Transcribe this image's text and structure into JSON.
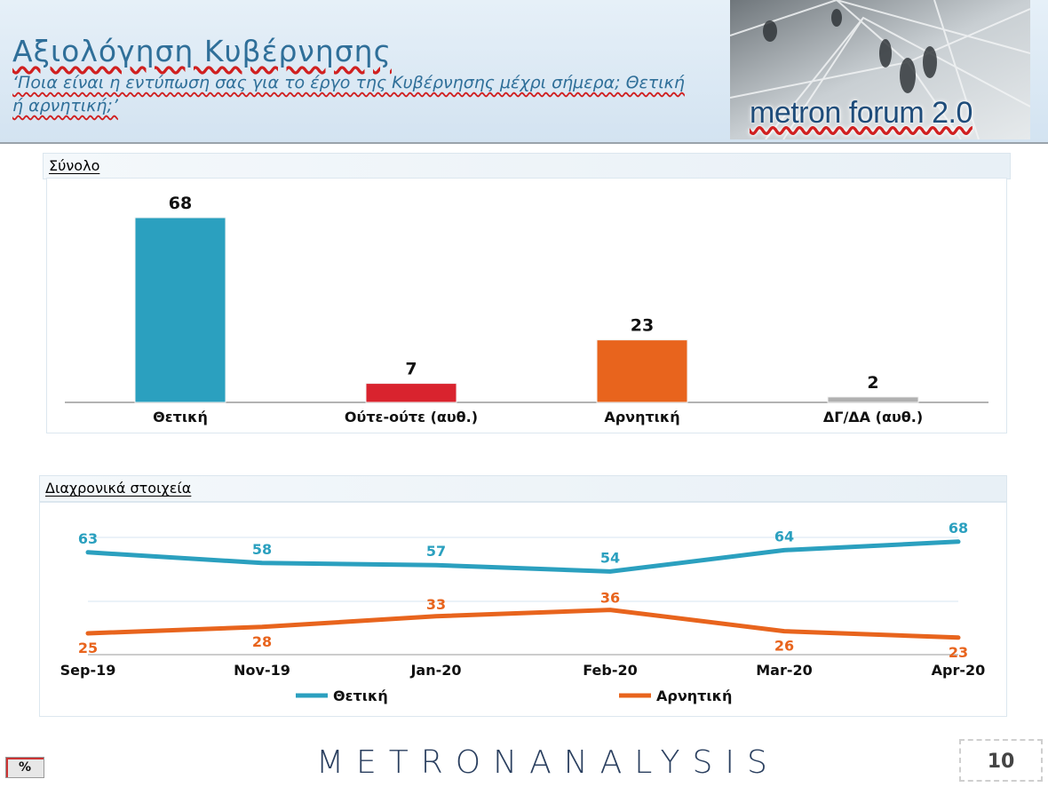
{
  "header": {
    "title": "Αξιολόγηση Κυβέρνησης",
    "subtitle": "‘Ποια είναι η εντύπωση σας για το έργο της Κυβέρνησης μέχρι σήμερα; Θετική ή αρνητική;’",
    "brand": "metron forum 2.0"
  },
  "sections": {
    "total_label": "Σύνολο",
    "trend_label": "Διαχρονικά στοιχεία"
  },
  "chart_data": [
    {
      "type": "bar",
      "categories": [
        "Θετική",
        "Ούτε-ούτε (αυθ.)",
        "Αρνητική",
        "ΔΓ/ΔΑ (αυθ.)"
      ],
      "values": [
        68,
        7,
        23,
        2
      ],
      "colors": [
        "#2ba0bf",
        "#d9232e",
        "#e8641d",
        "#b0b0b0"
      ],
      "title": "",
      "xlabel": "",
      "ylabel": "",
      "data_labels": true,
      "grid": false
    },
    {
      "type": "line",
      "categories": [
        "Sep-19",
        "Nov-19",
        "Jan-20",
        "Feb-20",
        "Mar-20",
        "Apr-20"
      ],
      "series": [
        {
          "name": "Θετική",
          "values": [
            63,
            58,
            57,
            54,
            64,
            68
          ],
          "color": "#2ba0bf"
        },
        {
          "name": "Αρνητική",
          "values": [
            25,
            28,
            33,
            36,
            26,
            23
          ],
          "color": "#e8641d"
        }
      ],
      "legend": "bottom",
      "grid": true,
      "data_labels": true
    }
  ],
  "footer": {
    "logo": "METRONANALYSIS",
    "unit_button": "%",
    "page_number": "10"
  }
}
